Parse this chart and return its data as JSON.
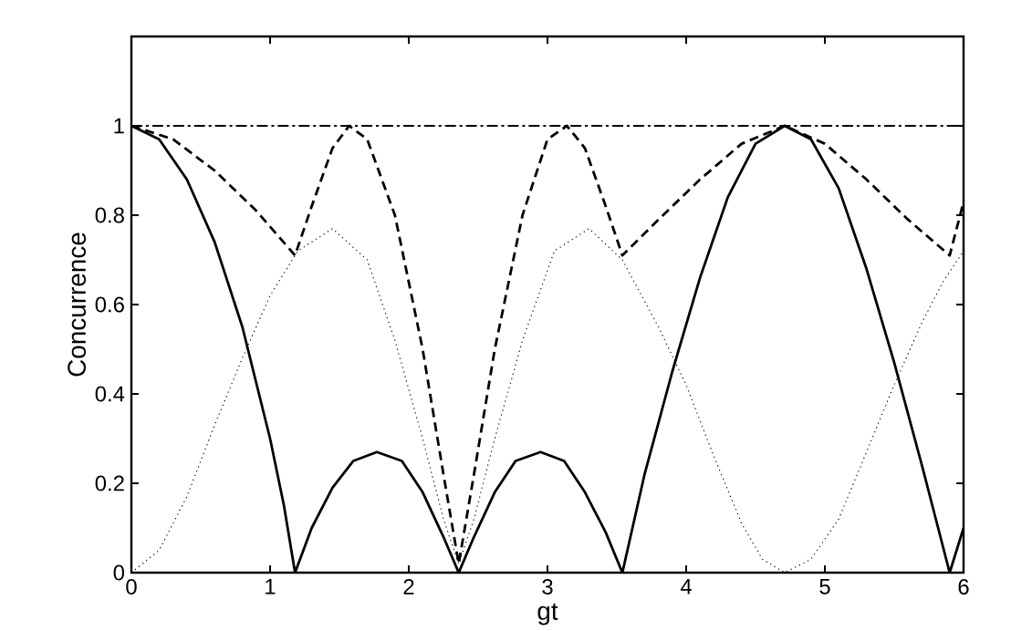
{
  "chart_data": {
    "type": "line",
    "xlabel": "gt",
    "ylabel": "Concurrence",
    "xlim": [
      0,
      6
    ],
    "ylim": [
      0,
      1.2
    ],
    "xticks": [
      0,
      1,
      2,
      3,
      4,
      5,
      6
    ],
    "yticks": [
      0,
      0.2,
      0.4,
      0.6,
      0.8,
      1
    ],
    "grid": false,
    "marker": "none",
    "series": [
      {
        "color": "#000000",
        "line_style": "solid",
        "x": [
          0,
          0.2,
          0.4,
          0.6,
          0.8,
          1.0,
          1.1,
          1.18,
          1.3,
          1.45,
          1.6,
          1.77,
          1.95,
          2.1,
          2.25,
          2.36,
          2.47,
          2.62,
          2.77,
          2.95,
          3.12,
          3.27,
          3.42,
          3.54,
          3.7,
          3.9,
          4.1,
          4.3,
          4.5,
          4.71,
          4.9,
          5.1,
          5.3,
          5.5,
          5.7,
          5.9,
          6
        ],
        "values": [
          1,
          0.97,
          0.88,
          0.74,
          0.55,
          0.3,
          0.15,
          0,
          0.1,
          0.19,
          0.25,
          0.27,
          0.25,
          0.18,
          0.08,
          0,
          0.08,
          0.18,
          0.25,
          0.27,
          0.25,
          0.18,
          0.09,
          0,
          0.22,
          0.45,
          0.66,
          0.84,
          0.96,
          1,
          0.97,
          0.86,
          0.68,
          0.47,
          0.24,
          0,
          0.1
        ]
      },
      {
        "color": "#000000",
        "line_style": "dashed",
        "x": [
          0,
          0.3,
          0.6,
          0.9,
          1.18,
          1.3,
          1.45,
          1.57,
          1.7,
          1.9,
          2.1,
          2.25,
          2.36,
          2.47,
          2.62,
          2.82,
          3.0,
          3.14,
          3.27,
          3.42,
          3.54,
          3.8,
          4.1,
          4.4,
          4.71,
          5.0,
          5.3,
          5.6,
          5.9,
          6
        ],
        "values": [
          1,
          0.97,
          0.9,
          0.81,
          0.71,
          0.82,
          0.95,
          1,
          0.97,
          0.8,
          0.5,
          0.22,
          0.02,
          0.22,
          0.5,
          0.8,
          0.97,
          1,
          0.95,
          0.82,
          0.71,
          0.79,
          0.88,
          0.96,
          1,
          0.96,
          0.88,
          0.79,
          0.71,
          0.83
        ]
      },
      {
        "color": "#000000",
        "line_style": "dotted",
        "x": [
          0,
          0.2,
          0.4,
          0.6,
          0.8,
          1.0,
          1.2,
          1.45,
          1.7,
          1.9,
          2.1,
          2.25,
          2.36,
          2.47,
          2.62,
          2.82,
          3.05,
          3.3,
          3.54,
          3.8,
          4.0,
          4.2,
          4.4,
          4.55,
          4.71,
          4.9,
          5.1,
          5.3,
          5.5,
          5.7,
          5.85,
          6
        ],
        "values": [
          0,
          0.05,
          0.17,
          0.33,
          0.48,
          0.62,
          0.72,
          0.77,
          0.7,
          0.52,
          0.3,
          0.12,
          0.02,
          0.12,
          0.3,
          0.52,
          0.72,
          0.77,
          0.7,
          0.55,
          0.42,
          0.26,
          0.11,
          0.03,
          0,
          0.03,
          0.12,
          0.27,
          0.42,
          0.56,
          0.65,
          0.72
        ]
      },
      {
        "color": "#000000",
        "line_style": "dashdot",
        "x": [
          0,
          6
        ],
        "values": [
          1,
          1
        ]
      }
    ]
  }
}
